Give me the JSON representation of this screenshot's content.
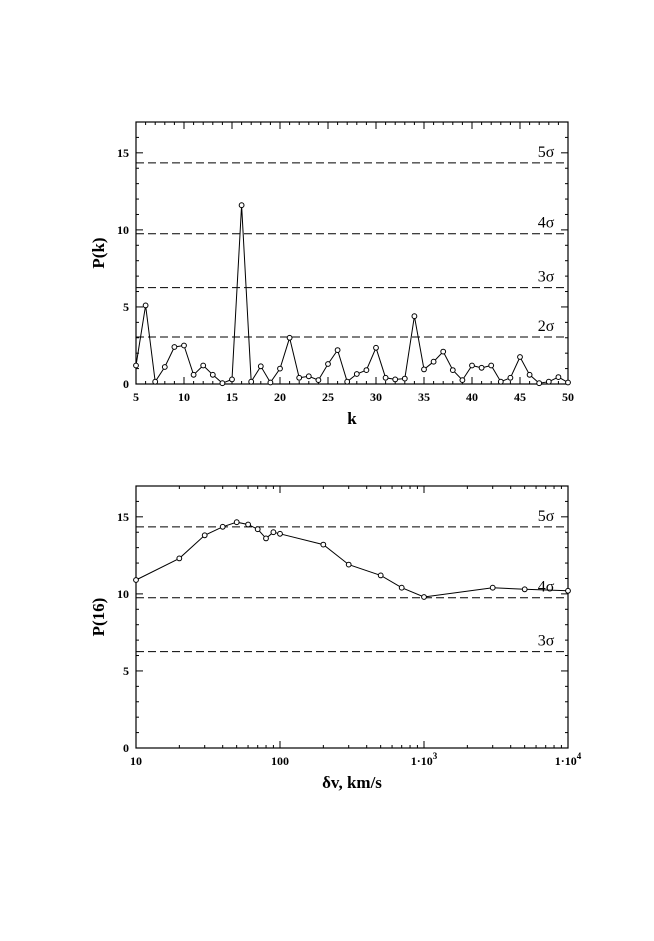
{
  "chart_data": [
    {
      "type": "line",
      "xlabel": "k",
      "ylabel": "P(k)",
      "xlim": [
        5,
        50
      ],
      "ylim": [
        0,
        17
      ],
      "xscale": "linear",
      "grid": false,
      "x_ticks": [
        5,
        10,
        15,
        20,
        25,
        30,
        35,
        40,
        45,
        50
      ],
      "x_tick_labels": [
        "5",
        "10",
        "15",
        "20",
        "25",
        "30",
        "35",
        "40",
        "45",
        "50"
      ],
      "y_ticks": [
        0,
        5,
        10,
        15
      ],
      "y_tick_labels": [
        "0",
        "5",
        "10",
        "15"
      ],
      "x": [
        5,
        6,
        7,
        8,
        9,
        10,
        11,
        12,
        13,
        14,
        15,
        16,
        17,
        18,
        19,
        20,
        21,
        22,
        23,
        24,
        25,
        26,
        27,
        28,
        29,
        30,
        31,
        32,
        33,
        34,
        35,
        36,
        37,
        38,
        39,
        40,
        41,
        42,
        43,
        44,
        45,
        46,
        47,
        48,
        49,
        50
      ],
      "y": [
        1.2,
        5.1,
        0.15,
        1.1,
        2.4,
        2.5,
        0.6,
        1.2,
        0.6,
        0.05,
        0.3,
        11.6,
        0.15,
        1.15,
        0.1,
        1.0,
        3.0,
        0.4,
        0.5,
        0.25,
        1.3,
        2.2,
        0.15,
        0.65,
        0.9,
        2.35,
        0.4,
        0.3,
        0.35,
        4.4,
        0.95,
        1.45,
        2.1,
        0.9,
        0.25,
        1.2,
        1.05,
        1.2,
        0.15,
        0.4,
        1.75,
        0.6,
        0.05,
        0.15,
        0.45,
        0.1
      ],
      "reference_lines": [
        {
          "y": 14.35,
          "label": "5σ"
        },
        {
          "y": 9.75,
          "label": "4σ"
        },
        {
          "y": 6.25,
          "label": "3σ"
        },
        {
          "y": 3.05,
          "label": "2σ"
        }
      ]
    },
    {
      "type": "line",
      "xlabel": "δv, km/s",
      "ylabel": "P(16)",
      "xlim": [
        10,
        10000
      ],
      "ylim": [
        0,
        17
      ],
      "xscale": "log",
      "grid": false,
      "x_ticks": [
        10,
        100,
        1000,
        10000
      ],
      "x_tick_labels": [
        "10",
        "100",
        "1·10",
        "1·10"
      ],
      "x_tick_exponents": [
        "",
        "",
        "3",
        "4"
      ],
      "y_ticks": [
        0,
        5,
        10,
        15
      ],
      "y_tick_labels": [
        "0",
        "5",
        "10",
        "15"
      ],
      "x": [
        10,
        20,
        30,
        40,
        50,
        60,
        70,
        80,
        90,
        100,
        200,
        300,
        500,
        700,
        1000,
        3000,
        5000,
        10000
      ],
      "y": [
        10.9,
        12.3,
        13.8,
        14.35,
        14.65,
        14.5,
        14.2,
        13.6,
        14.0,
        13.9,
        13.2,
        11.9,
        11.2,
        10.4,
        9.8,
        10.4,
        10.3,
        10.2
      ],
      "reference_lines": [
        {
          "y": 14.35,
          "label": "5σ"
        },
        {
          "y": 9.75,
          "label": "4σ"
        },
        {
          "y": 6.25,
          "label": "3σ"
        }
      ]
    }
  ]
}
